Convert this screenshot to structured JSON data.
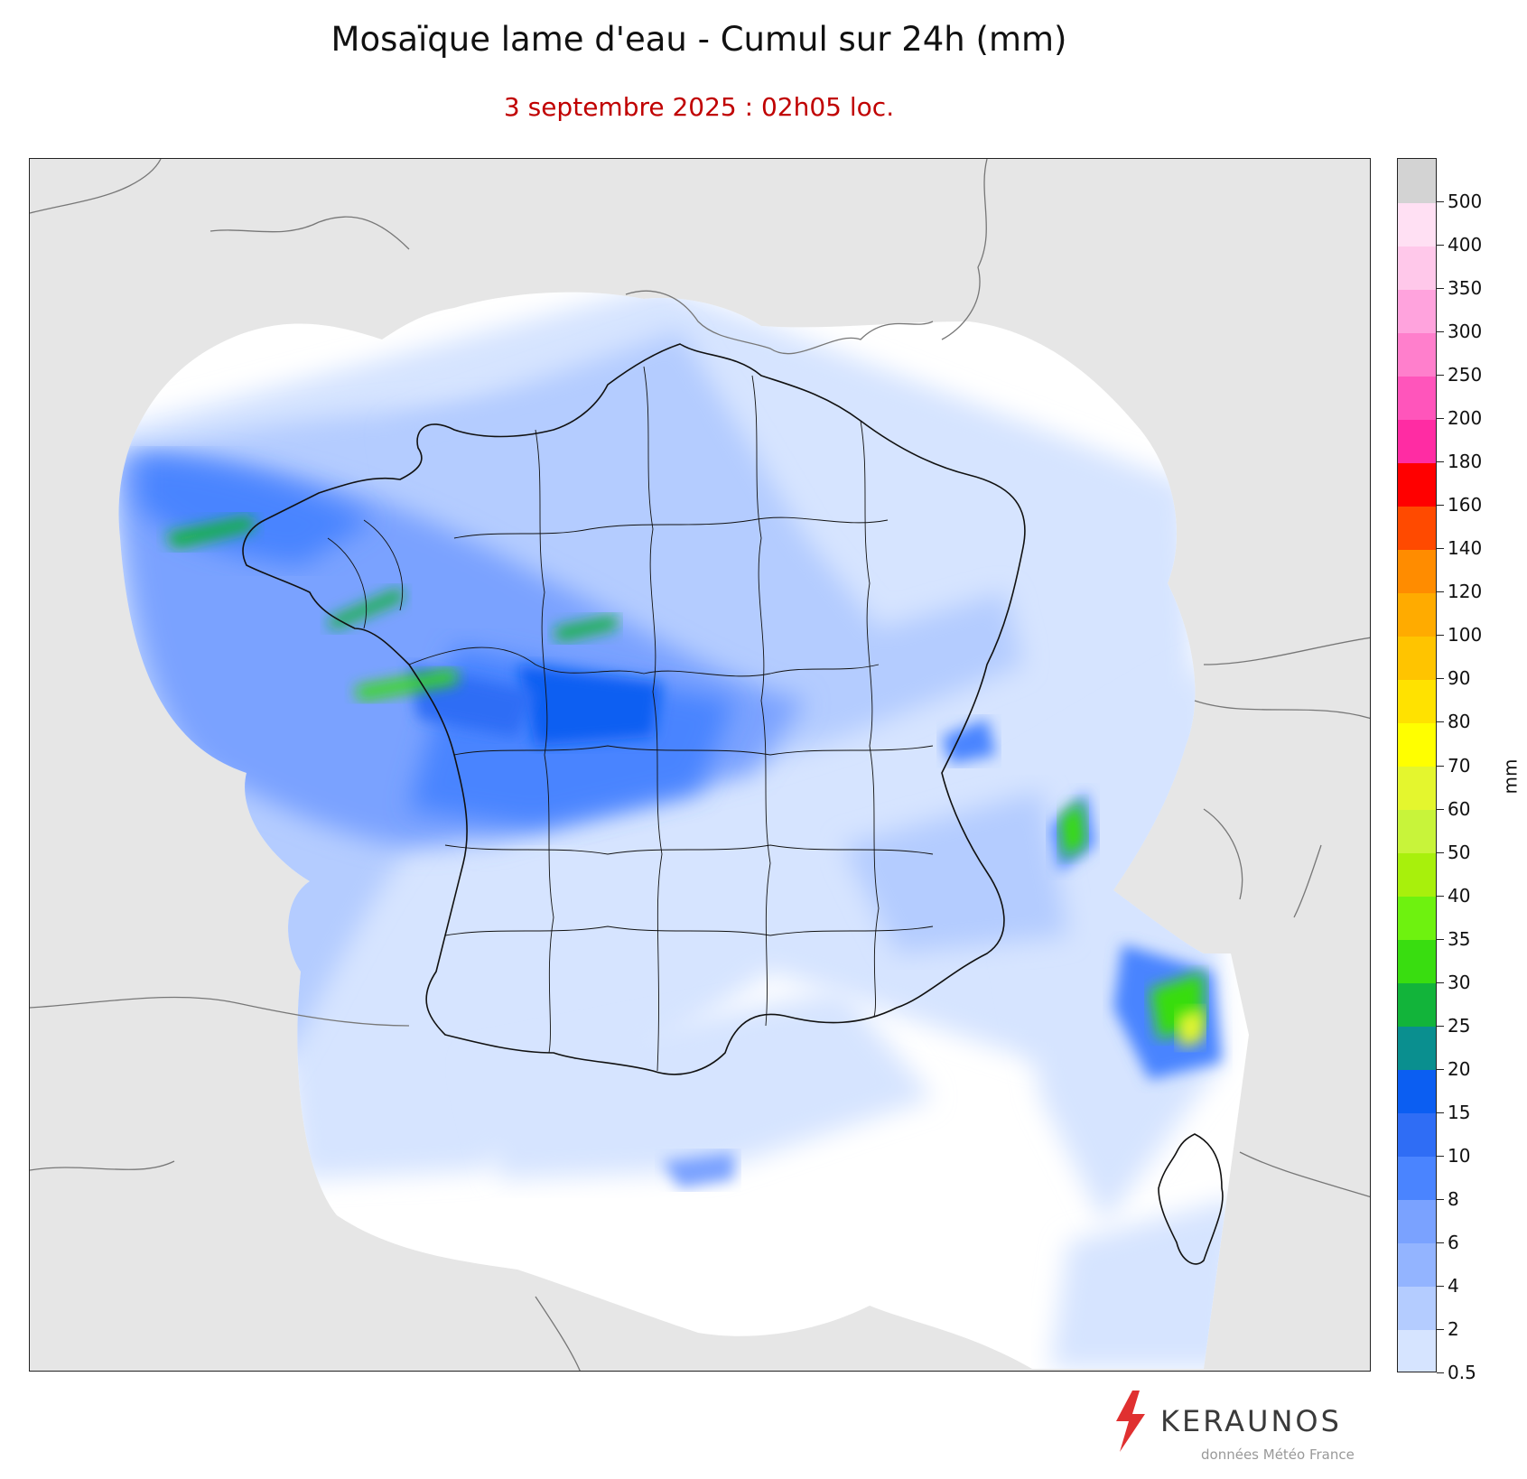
{
  "title": "Mosaïque lame d'eau - Cumul sur 24h (mm)",
  "subtitle": "3 septembre 2025 : 02h05 loc.",
  "colorbar": {
    "unit": "mm",
    "bounds": [
      "0.5",
      "2",
      "4",
      "6",
      "8",
      "10",
      "15",
      "20",
      "25",
      "30",
      "35",
      "40",
      "50",
      "60",
      "70",
      "80",
      "90",
      "100",
      "120",
      "140",
      "160",
      "180",
      "200",
      "250",
      "300",
      "350",
      "400",
      "500"
    ],
    "colors": [
      "#d6e4ff",
      "#b4ccff",
      "#93b4ff",
      "#7aa2ff",
      "#4a84ff",
      "#2f6df5",
      "#0b5ef2",
      "#0a8f8f",
      "#12b43a",
      "#39dd10",
      "#6ef20f",
      "#a8f00c",
      "#c8f43a",
      "#e4f62e",
      "#ffff00",
      "#ffe200",
      "#ffc400",
      "#ffab00",
      "#ff8c00",
      "#ff4a00",
      "#ff0000",
      "#ff2ca3",
      "#ff55bb",
      "#ff7fcc",
      "#ffa3dd",
      "#ffc8ea",
      "#ffe0f3",
      "#d3d3d3"
    ]
  },
  "map": {
    "background_color": "#e6e6e6",
    "coverage_color": "#ffffff"
  },
  "branding": {
    "name": "KERAUNOS",
    "source": "données Météo France",
    "accent": "#e03030"
  }
}
